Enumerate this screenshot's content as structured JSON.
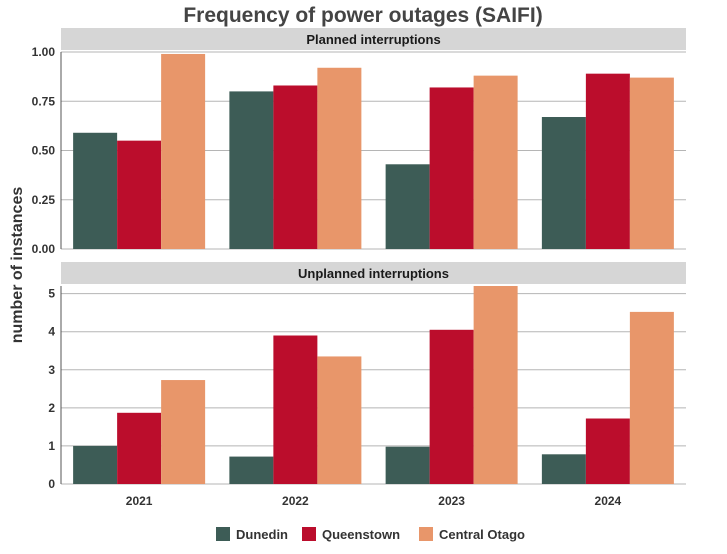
{
  "chart_data": {
    "type": "bar",
    "title": "Frequency of power outages (SAIFI)",
    "ylabel": "number of instances",
    "xlabel": "",
    "categories": [
      "2021",
      "2022",
      "2023",
      "2024"
    ],
    "legend_position": "bottom",
    "series_colors": {
      "Dunedin": "#3d5c56",
      "Queenstown": "#bb0d2c",
      "Central Otago": "#e8966a"
    },
    "legend": [
      "Dunedin",
      "Queenstown",
      "Central Otago"
    ],
    "panels": [
      {
        "label": "Planned interruptions",
        "ylim": [
          0,
          1.0
        ],
        "yticks": [
          "0.00",
          "0.25",
          "0.50",
          "0.75",
          "1.00"
        ],
        "ytick_values": [
          0,
          0.25,
          0.5,
          0.75,
          1.0
        ],
        "series": [
          {
            "name": "Dunedin",
            "values": [
              0.59,
              0.8,
              0.43,
              0.67
            ]
          },
          {
            "name": "Queenstown",
            "values": [
              0.55,
              0.83,
              0.82,
              0.89
            ]
          },
          {
            "name": "Central Otago",
            "values": [
              0.99,
              0.92,
              0.88,
              0.87
            ]
          }
        ]
      },
      {
        "label": "Unplanned interruptions",
        "ylim": [
          0,
          5.2
        ],
        "yticks": [
          "0",
          "1",
          "2",
          "3",
          "4",
          "5"
        ],
        "ytick_values": [
          0,
          1,
          2,
          3,
          4,
          5
        ],
        "series": [
          {
            "name": "Dunedin",
            "values": [
              1.0,
              0.72,
              0.98,
              0.78
            ]
          },
          {
            "name": "Queenstown",
            "values": [
              1.87,
              3.9,
              4.05,
              1.72
            ]
          },
          {
            "name": "Central Otago",
            "values": [
              2.73,
              3.35,
              5.2,
              4.52
            ]
          }
        ]
      }
    ]
  }
}
